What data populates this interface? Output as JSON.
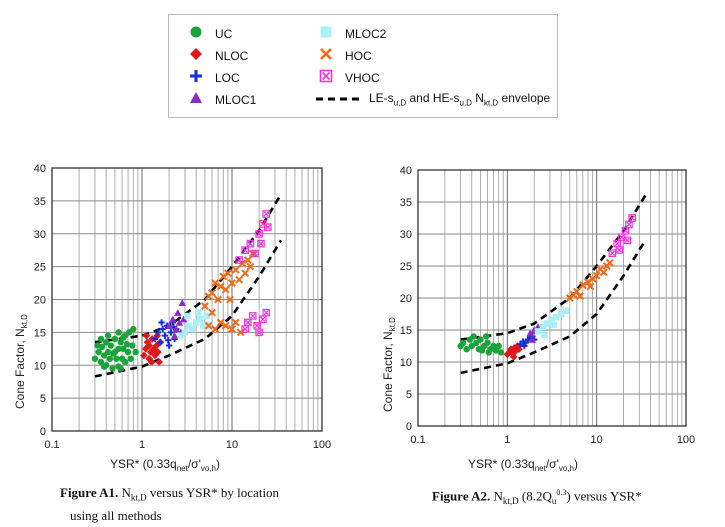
{
  "legend": {
    "items": [
      {
        "key": "UC",
        "label": "UC",
        "color": "#1aa33a",
        "marker": "circle"
      },
      {
        "key": "NLOC",
        "label": "NLOC",
        "color": "#e0161b",
        "marker": "diamond"
      },
      {
        "key": "LOC",
        "label": "LOC",
        "color": "#1530d8",
        "marker": "plus"
      },
      {
        "key": "MLOC1",
        "label": "MLOC1",
        "color": "#8a2bc8",
        "marker": "triangle"
      },
      {
        "key": "MLOC2",
        "label": "MLOC2",
        "color": "#a8f0f5",
        "marker": "square"
      },
      {
        "key": "HOC",
        "label": "HOC",
        "color": "#f26a17",
        "marker": "x"
      },
      {
        "key": "VHOC",
        "label": "VHOC",
        "color": "#ee33dd",
        "marker": "boxed-x"
      }
    ],
    "envelope_label_parts": [
      "LE-s",
      "u,D",
      " and HE-s",
      "u,D",
      " N",
      "kt,D",
      " envelope"
    ]
  },
  "captions": {
    "a1": {
      "bold": "Figure A1.",
      "n": "N",
      "sub": "kt,D",
      "rest": " versus YSR* by location",
      "line2": "using all methods"
    },
    "a2": {
      "bold": "Figure A2.",
      "n": "N",
      "sub": "kt,D",
      "mid": " (8.2Q",
      "qsub": "u",
      "sup": "0.3",
      "rest": ") versus YSR*"
    }
  },
  "chart_data": [
    {
      "type": "scatter",
      "id": "A1",
      "xscale": "log",
      "xlim": [
        0.1,
        100
      ],
      "ylim": [
        0,
        40
      ],
      "xticks": [
        "0.1",
        "1",
        "10",
        "100"
      ],
      "yticks": [
        "0",
        "5",
        "10",
        "15",
        "20",
        "25",
        "30",
        "35",
        "40"
      ],
      "ylabel_parts": [
        "Cone Factor, N",
        "kt,D"
      ],
      "xlabel_parts": [
        "YSR* (0.33q",
        "net",
        "/σ'",
        "vo,h",
        ")"
      ],
      "envelope_upper": [
        [
          0.3,
          13.5
        ],
        [
          1,
          14.5
        ],
        [
          2,
          16
        ],
        [
          5,
          20
        ],
        [
          10,
          25
        ],
        [
          20,
          30.5
        ],
        [
          35,
          36
        ]
      ],
      "envelope_lower": [
        [
          0.3,
          8.3
        ],
        [
          1,
          9.8
        ],
        [
          2,
          11.5
        ],
        [
          5,
          14
        ],
        [
          10,
          17.5
        ],
        [
          20,
          23.5
        ],
        [
          35,
          29
        ]
      ],
      "groups": [
        {
          "key": "UC",
          "points": [
            [
              0.3,
              11.0
            ],
            [
              0.32,
              13.0
            ],
            [
              0.33,
              12.0
            ],
            [
              0.35,
              10.5
            ],
            [
              0.36,
              12.8
            ],
            [
              0.38,
              11.5
            ],
            [
              0.4,
              13.5
            ],
            [
              0.4,
              10.0
            ],
            [
              0.42,
              12.0
            ],
            [
              0.44,
              11.0
            ],
            [
              0.45,
              13.0
            ],
            [
              0.47,
              9.5
            ],
            [
              0.5,
              12.0
            ],
            [
              0.5,
              14.0
            ],
            [
              0.52,
              11.0
            ],
            [
              0.55,
              12.5
            ],
            [
              0.55,
              9.8
            ],
            [
              0.58,
              13.5
            ],
            [
              0.6,
              11.0
            ],
            [
              0.62,
              12.5
            ],
            [
              0.65,
              10.5
            ],
            [
              0.65,
              14.5
            ],
            [
              0.7,
              12.0
            ],
            [
              0.72,
              15.0
            ],
            [
              0.75,
              11.0
            ],
            [
              0.78,
              13.0
            ],
            [
              0.8,
              15.5
            ],
            [
              0.85,
              12.0
            ],
            [
              0.55,
              15.0
            ],
            [
              0.35,
              14.0
            ],
            [
              0.48,
              11.8
            ],
            [
              0.68,
              13.2
            ],
            [
              0.58,
              9.5
            ],
            [
              0.42,
              14.5
            ],
            [
              0.38,
              9.8
            ],
            [
              0.62,
              14.2
            ]
          ]
        },
        {
          "key": "NLOC",
          "points": [
            [
              1.05,
              11.5
            ],
            [
              1.1,
              12.5
            ],
            [
              1.15,
              13.5
            ],
            [
              1.2,
              11.0
            ],
            [
              1.25,
              12.0
            ],
            [
              1.3,
              14.0
            ],
            [
              1.35,
              12.5
            ],
            [
              1.4,
              11.5
            ],
            [
              1.45,
              13.0
            ],
            [
              1.5,
              12.0
            ],
            [
              1.55,
              10.5
            ],
            [
              1.6,
              13.5
            ],
            [
              1.12,
              14.5
            ],
            [
              1.28,
              10.5
            ],
            [
              1.48,
              14.5
            ],
            [
              1.2,
              13.0
            ]
          ]
        },
        {
          "key": "LOC",
          "points": [
            [
              1.4,
              14.0
            ],
            [
              1.5,
              15.0
            ],
            [
              1.6,
              13.5
            ],
            [
              1.7,
              15.5
            ],
            [
              1.8,
              14.5
            ],
            [
              1.9,
              16.0
            ],
            [
              2.0,
              13.0
            ],
            [
              2.1,
              15.0
            ],
            [
              2.2,
              16.5
            ],
            [
              2.3,
              14.0
            ],
            [
              2.4,
              15.5
            ],
            [
              1.65,
              16.5
            ],
            [
              1.95,
              13.8
            ],
            [
              2.25,
              15.8
            ]
          ]
        },
        {
          "key": "MLOC1",
          "points": [
            [
              2.0,
              16.0
            ],
            [
              2.2,
              17.0
            ],
            [
              2.4,
              15.5
            ],
            [
              2.6,
              16.5
            ],
            [
              2.8,
              19.5
            ],
            [
              2.5,
              18.0
            ],
            [
              2.3,
              14.5
            ],
            [
              2.9,
              17.0
            ],
            [
              2.7,
              15.0
            ]
          ]
        },
        {
          "key": "MLOC2",
          "points": [
            [
              2.7,
              14.5
            ],
            [
              3.0,
              15.0
            ],
            [
              3.3,
              16.0
            ],
            [
              3.6,
              15.5
            ],
            [
              4.0,
              16.5
            ],
            [
              4.4,
              17.0
            ],
            [
              4.8,
              16.0
            ],
            [
              5.2,
              17.5
            ],
            [
              3.2,
              17.5
            ],
            [
              4.2,
              18.0
            ],
            [
              5.5,
              16.2
            ]
          ]
        },
        {
          "key": "HOC",
          "points": [
            [
              5.0,
              19.0
            ],
            [
              5.5,
              20.5
            ],
            [
              6.0,
              21.0
            ],
            [
              6.5,
              22.5
            ],
            [
              7.0,
              20.0
            ],
            [
              7.5,
              22.0
            ],
            [
              8.0,
              23.5
            ],
            [
              8.5,
              21.5
            ],
            [
              9.0,
              24.0
            ],
            [
              10.0,
              22.5
            ],
            [
              11.0,
              24.5
            ],
            [
              12.0,
              23.0
            ],
            [
              13.0,
              25.5
            ],
            [
              14.0,
              24.0
            ],
            [
              15.0,
              26.0
            ],
            [
              16.0,
              25.0
            ],
            [
              17.0,
              27.0
            ],
            [
              5.5,
              16.0
            ],
            [
              6.5,
              15.5
            ],
            [
              7.5,
              16.5
            ],
            [
              8.5,
              16.0
            ],
            [
              10.0,
              15.5
            ],
            [
              11.0,
              16.5
            ],
            [
              12.5,
              15.0
            ],
            [
              6.0,
              18.0
            ],
            [
              9.5,
              20.0
            ]
          ]
        },
        {
          "key": "VHOC",
          "points": [
            [
              12.0,
              26.0
            ],
            [
              14.0,
              27.5
            ],
            [
              16.0,
              28.5
            ],
            [
              18.0,
              27.0
            ],
            [
              20.0,
              30.0
            ],
            [
              22.0,
              31.5
            ],
            [
              24.0,
              33.0
            ],
            [
              21.0,
              28.5
            ],
            [
              25.0,
              31.0
            ],
            [
              15.0,
              16.5
            ],
            [
              17.0,
              17.5
            ],
            [
              19.0,
              16.0
            ],
            [
              22.0,
              17.0
            ],
            [
              24.0,
              18.0
            ],
            [
              14.0,
              15.5
            ],
            [
              20.0,
              15.0
            ]
          ]
        }
      ]
    },
    {
      "type": "scatter",
      "id": "A2",
      "xscale": "log",
      "xlim": [
        0.1,
        100
      ],
      "ylim": [
        0,
        40
      ],
      "xticks": [
        "0.1",
        "1",
        "10",
        "100"
      ],
      "yticks": [
        "0",
        "5",
        "10",
        "15",
        "20",
        "25",
        "30",
        "35",
        "40"
      ],
      "ylabel_parts": [
        "Cone Factor, N",
        "kt,D"
      ],
      "xlabel_parts": [
        "YSR* (0.33q",
        "net",
        "/σ'",
        "vo,h",
        ")"
      ],
      "envelope_upper": [
        [
          0.3,
          13.5
        ],
        [
          1,
          14.5
        ],
        [
          2,
          16
        ],
        [
          5,
          20
        ],
        [
          10,
          25
        ],
        [
          20,
          30.5
        ],
        [
          35,
          36
        ]
      ],
      "envelope_lower": [
        [
          0.3,
          8.3
        ],
        [
          1,
          9.8
        ],
        [
          2,
          11.5
        ],
        [
          5,
          14
        ],
        [
          10,
          17.5
        ],
        [
          20,
          23.5
        ],
        [
          35,
          29
        ]
      ],
      "groups": [
        {
          "key": "UC",
          "points": [
            [
              0.3,
              12.5
            ],
            [
              0.32,
              13.0
            ],
            [
              0.35,
              12.0
            ],
            [
              0.38,
              13.5
            ],
            [
              0.4,
              12.5
            ],
            [
              0.42,
              14.0
            ],
            [
              0.45,
              13.0
            ],
            [
              0.48,
              12.0
            ],
            [
              0.5,
              13.5
            ],
            [
              0.55,
              12.5
            ],
            [
              0.58,
              14.0
            ],
            [
              0.6,
              13.0
            ],
            [
              0.65,
              12.0
            ],
            [
              0.7,
              12.5
            ],
            [
              0.75,
              11.8
            ],
            [
              0.8,
              12.5
            ],
            [
              0.85,
              11.5
            ],
            [
              0.52,
              11.8
            ],
            [
              0.62,
              11.5
            ]
          ]
        },
        {
          "key": "NLOC",
          "points": [
            [
              1.0,
              11.2
            ],
            [
              1.05,
              11.5
            ],
            [
              1.1,
              12.0
            ],
            [
              1.15,
              11.3
            ],
            [
              1.2,
              12.2
            ],
            [
              1.25,
              11.8
            ],
            [
              1.3,
              12.5
            ],
            [
              1.35,
              12.0
            ],
            [
              1.18,
              10.8
            ]
          ]
        },
        {
          "key": "LOC",
          "points": [
            [
              1.4,
              12.8
            ],
            [
              1.5,
              13.2
            ],
            [
              1.6,
              13.0
            ],
            [
              1.7,
              13.5
            ],
            [
              1.8,
              13.8
            ],
            [
              1.9,
              14.0
            ],
            [
              2.0,
              13.5
            ],
            [
              1.55,
              12.5
            ]
          ]
        },
        {
          "key": "MLOC1",
          "points": [
            [
              1.8,
              14.5
            ],
            [
              2.0,
              15.0
            ],
            [
              2.2,
              15.5
            ],
            [
              1.9,
              13.5
            ],
            [
              2.1,
              14.8
            ]
          ]
        },
        {
          "key": "MLOC2",
          "points": [
            [
              2.2,
              14.8
            ],
            [
              2.5,
              15.5
            ],
            [
              2.8,
              16.0
            ],
            [
              3.1,
              16.5
            ],
            [
              3.5,
              17.0
            ],
            [
              4.0,
              17.5
            ],
            [
              4.5,
              18.0
            ],
            [
              3.3,
              15.8
            ],
            [
              2.6,
              14.2
            ]
          ]
        },
        {
          "key": "HOC",
          "points": [
            [
              5.0,
              20.0
            ],
            [
              5.5,
              20.5
            ],
            [
              6.0,
              21.0
            ],
            [
              7.0,
              22.0
            ],
            [
              8.0,
              22.5
            ],
            [
              9.0,
              23.0
            ],
            [
              10.0,
              23.5
            ],
            [
              11.0,
              24.5
            ],
            [
              12.0,
              24.0
            ],
            [
              13.0,
              25.0
            ],
            [
              14.0,
              25.5
            ],
            [
              6.5,
              20.3
            ],
            [
              8.5,
              21.8
            ]
          ]
        },
        {
          "key": "VHOC",
          "points": [
            [
              15.0,
              27.0
            ],
            [
              17.0,
              28.5
            ],
            [
              19.0,
              29.5
            ],
            [
              21.0,
              30.5
            ],
            [
              23.0,
              31.5
            ],
            [
              25.0,
              32.5
            ],
            [
              18.0,
              27.5
            ],
            [
              22.0,
              29.0
            ]
          ]
        }
      ]
    }
  ]
}
